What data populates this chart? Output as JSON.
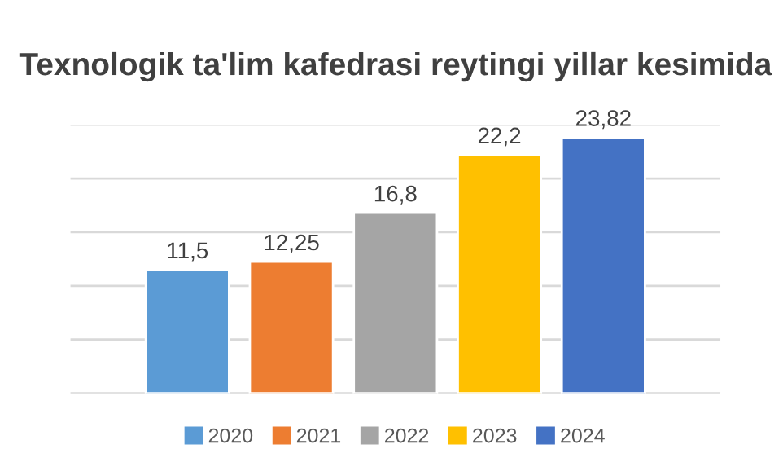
{
  "chart_data": {
    "type": "bar",
    "title": "Texnologik ta'lim kafedrasi reytingi yillar kesimida",
    "categories": [
      null
    ],
    "series": [
      {
        "name": "2020",
        "color": "#5b9bd5",
        "values": [
          11.5
        ],
        "value_labels": [
          "11,5"
        ]
      },
      {
        "name": "2021",
        "color": "#ed7d31",
        "values": [
          12.25
        ],
        "value_labels": [
          "12,25"
        ]
      },
      {
        "name": "2022",
        "color": "#a5a5a5",
        "values": [
          16.8
        ],
        "value_labels": [
          "16,8"
        ]
      },
      {
        "name": "2023",
        "color": "#ffc000",
        "values": [
          22.2
        ],
        "value_labels": [
          "22,2"
        ]
      },
      {
        "name": "2024",
        "color": "#4472c4",
        "values": [
          23.82
        ],
        "value_labels": [
          "23,82"
        ]
      }
    ],
    "ylim": [
      0,
      25
    ],
    "yticks": [
      {
        "value": 0,
        "label": null
      },
      {
        "value": 5,
        "label": null
      },
      {
        "value": 10,
        "label": null
      },
      {
        "value": 15,
        "label": null
      },
      {
        "value": 20,
        "label": null
      },
      {
        "value": 25,
        "label": null
      }
    ],
    "grid": "y",
    "legend": "bottom"
  }
}
